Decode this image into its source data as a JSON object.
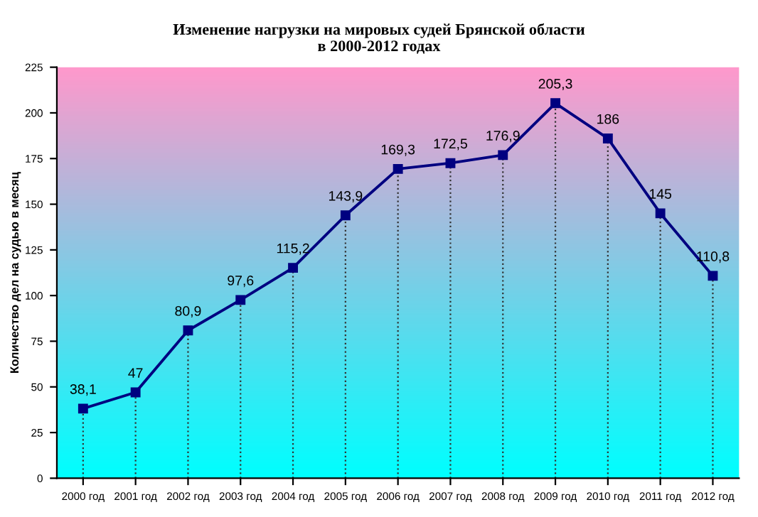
{
  "chart_data": {
    "type": "line",
    "title": "Изменение нагрузки на мировых судей Брянской области\nв 2000-2012 годах",
    "ylabel": "Количество дел на судью в месяц",
    "categories": [
      "2000 год",
      "2001 год",
      "2002 год",
      "2003 год",
      "2004 год",
      "2005 год",
      "2006 год",
      "2007 год",
      "2008 год",
      "2009 год",
      "2010 год",
      "2011 год",
      "2012 год"
    ],
    "series": [
      {
        "color": "#000080",
        "values": [
          38.1,
          47,
          80.9,
          97.6,
          115.2,
          143.9,
          169.3,
          172.5,
          176.9,
          205.3,
          186,
          145,
          110.8
        ],
        "value_labels": [
          "38,1",
          "47",
          "80,9",
          "97,6",
          "115,2",
          "143,9",
          "169,3",
          "172,5",
          "176,9",
          "205,3",
          "186",
          "145",
          "110,8"
        ]
      }
    ],
    "ylim": [
      0,
      225
    ],
    "yticks": [
      0,
      25,
      50,
      75,
      100,
      125,
      150,
      175,
      200,
      225
    ],
    "grid": "x",
    "legend": false,
    "marker": "square",
    "line_style": "solid"
  }
}
